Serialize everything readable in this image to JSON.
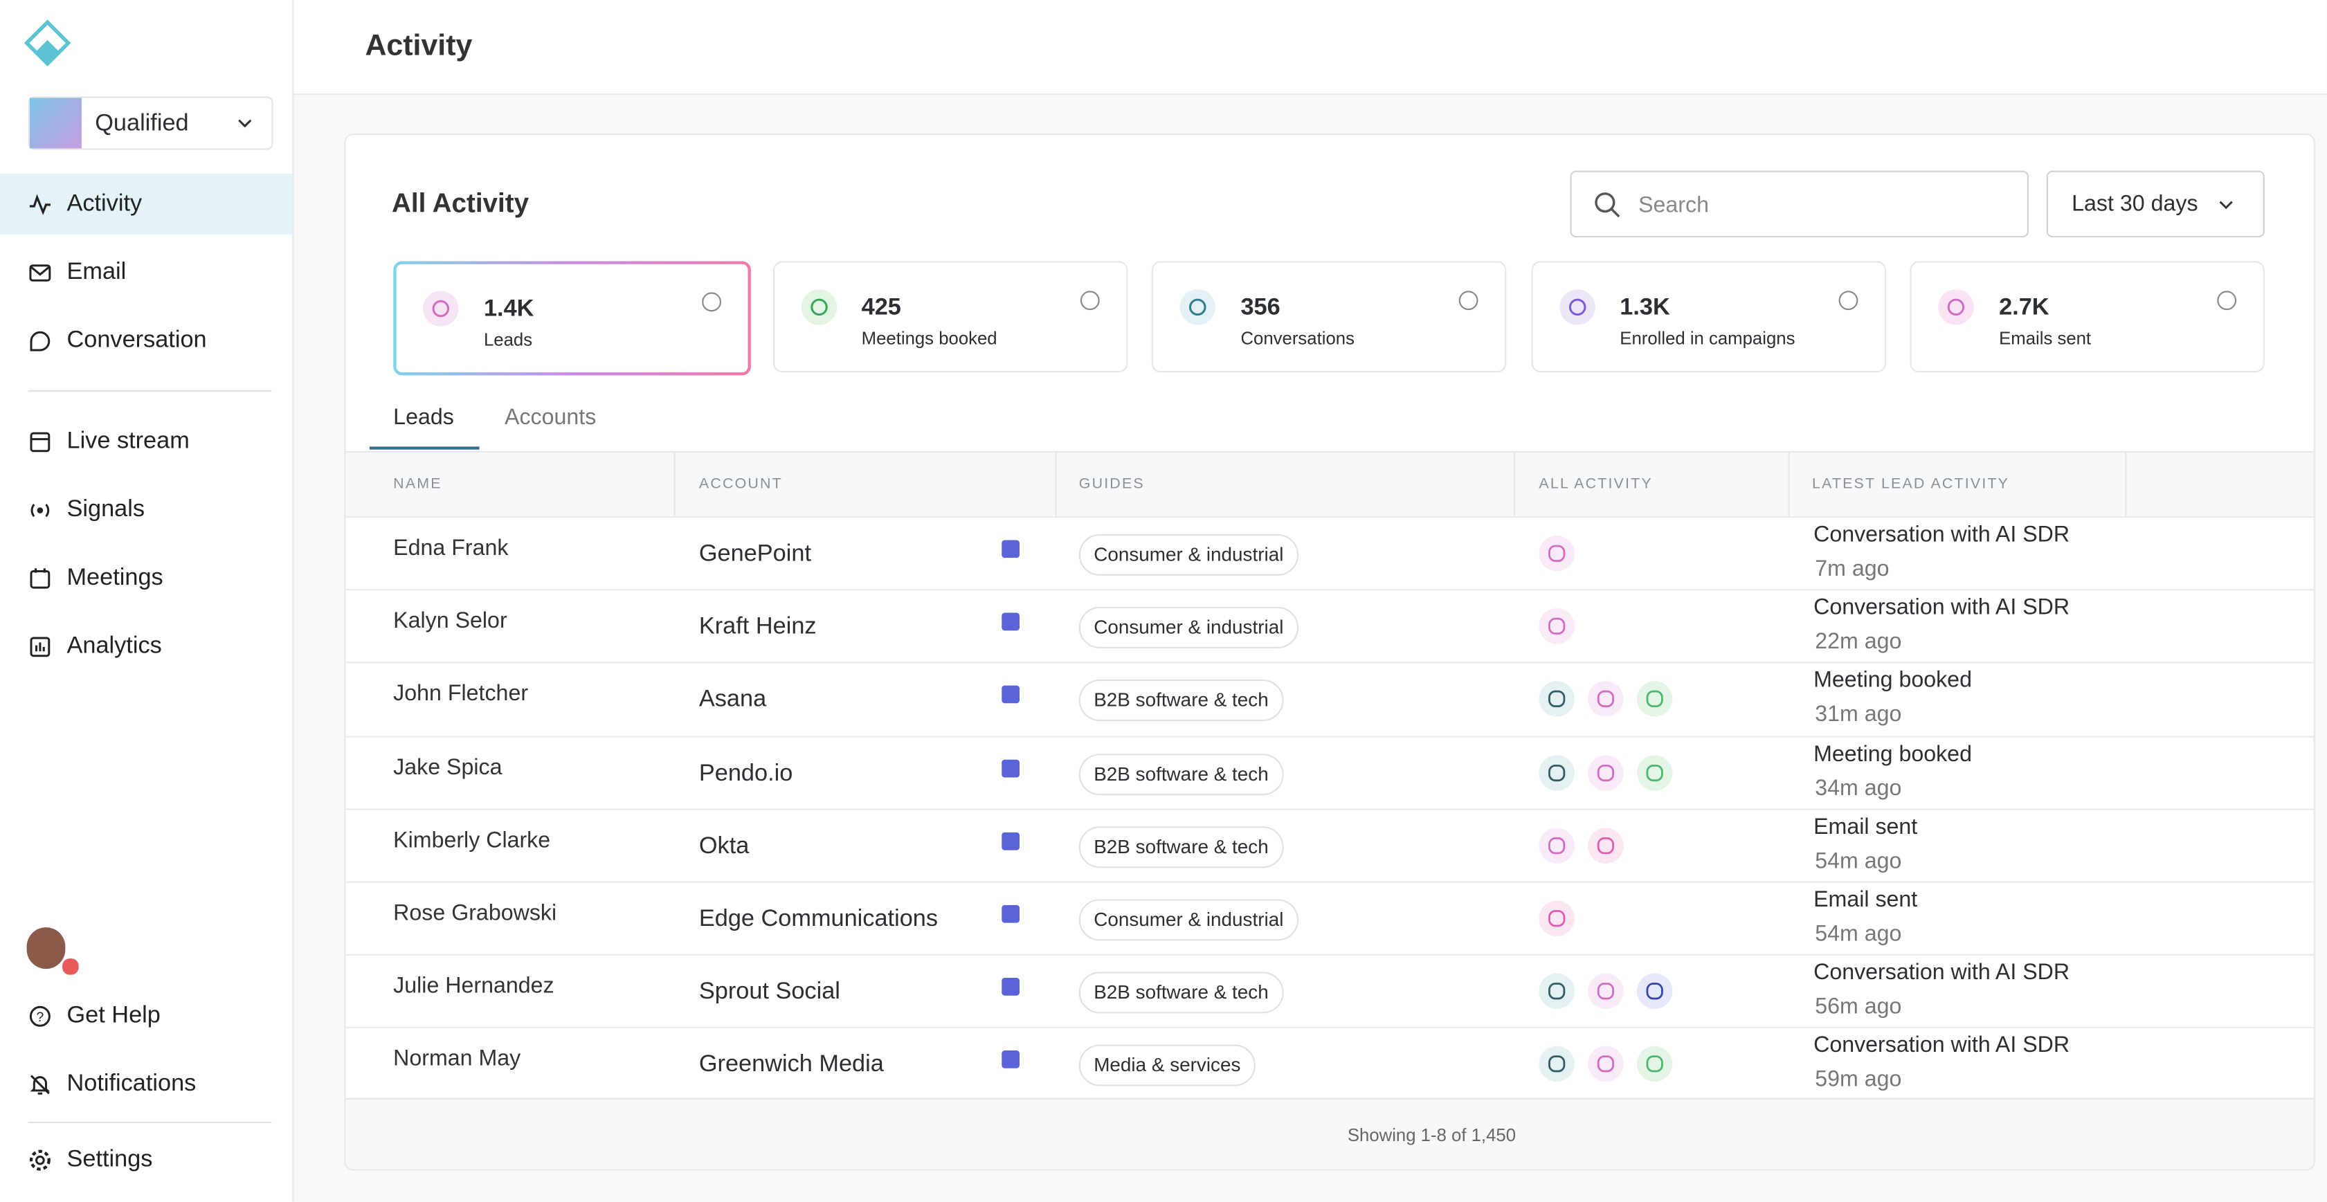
{
  "sidebar": {
    "brand": "Qualified",
    "nav": [
      "Activity",
      "Email",
      "Conversation",
      "Live stream",
      "Signals",
      "Meetings",
      "Analytics"
    ],
    "footer_nav": [
      "Get Help",
      "Notifications",
      "Settings"
    ]
  },
  "header": {
    "title": "Activity"
  },
  "panel": {
    "title": "All Activity",
    "search_placeholder": "Search",
    "date_range": "Last 30 days"
  },
  "stats": [
    {
      "value": "1.4K",
      "label": "Leads"
    },
    {
      "value": "425",
      "label": "Meetings booked"
    },
    {
      "value": "356",
      "label": "Conversations"
    },
    {
      "value": "1.3K",
      "label": "Enrolled in campaigns"
    },
    {
      "value": "2.7K",
      "label": "Emails sent"
    }
  ],
  "tabs": [
    "Leads",
    "Accounts"
  ],
  "table": {
    "columns": [
      "NAME",
      "ACCOUNT",
      "GUIDES",
      "ALL ACTIVITY",
      "LATEST LEAD ACTIVITY"
    ],
    "rows": [
      [
        "Edna Frank",
        "GenePoint",
        "Consumer & industrial",
        "Conversation with AI SDR",
        "7m ago"
      ],
      [
        "Kalyn Selor",
        "Kraft Heinz",
        "Consumer & industrial",
        "Conversation with AI SDR",
        "22m ago"
      ],
      [
        "John Fletcher",
        "Asana",
        "B2B software & tech",
        "Meeting booked",
        "31m ago"
      ],
      [
        "Jake Spica",
        "Pendo.io",
        "B2B software & tech",
        "Meeting booked",
        "34m ago"
      ],
      [
        "Kimberly Clarke",
        "Okta",
        "B2B software & tech",
        "Email sent",
        "54m ago"
      ],
      [
        "Rose Grabowski",
        "Edge Communications",
        "Consumer & industrial",
        "Email sent",
        "54m ago"
      ],
      [
        "Julie Hernandez",
        "Sprout Social",
        "B2B software & tech",
        "Conversation with AI SDR",
        "56m ago"
      ],
      [
        "Norman May",
        "Greenwich Media",
        "Media & services",
        "Conversation with AI SDR",
        "59m ago"
      ]
    ],
    "footer": "Showing 1-8 of 1,450"
  }
}
